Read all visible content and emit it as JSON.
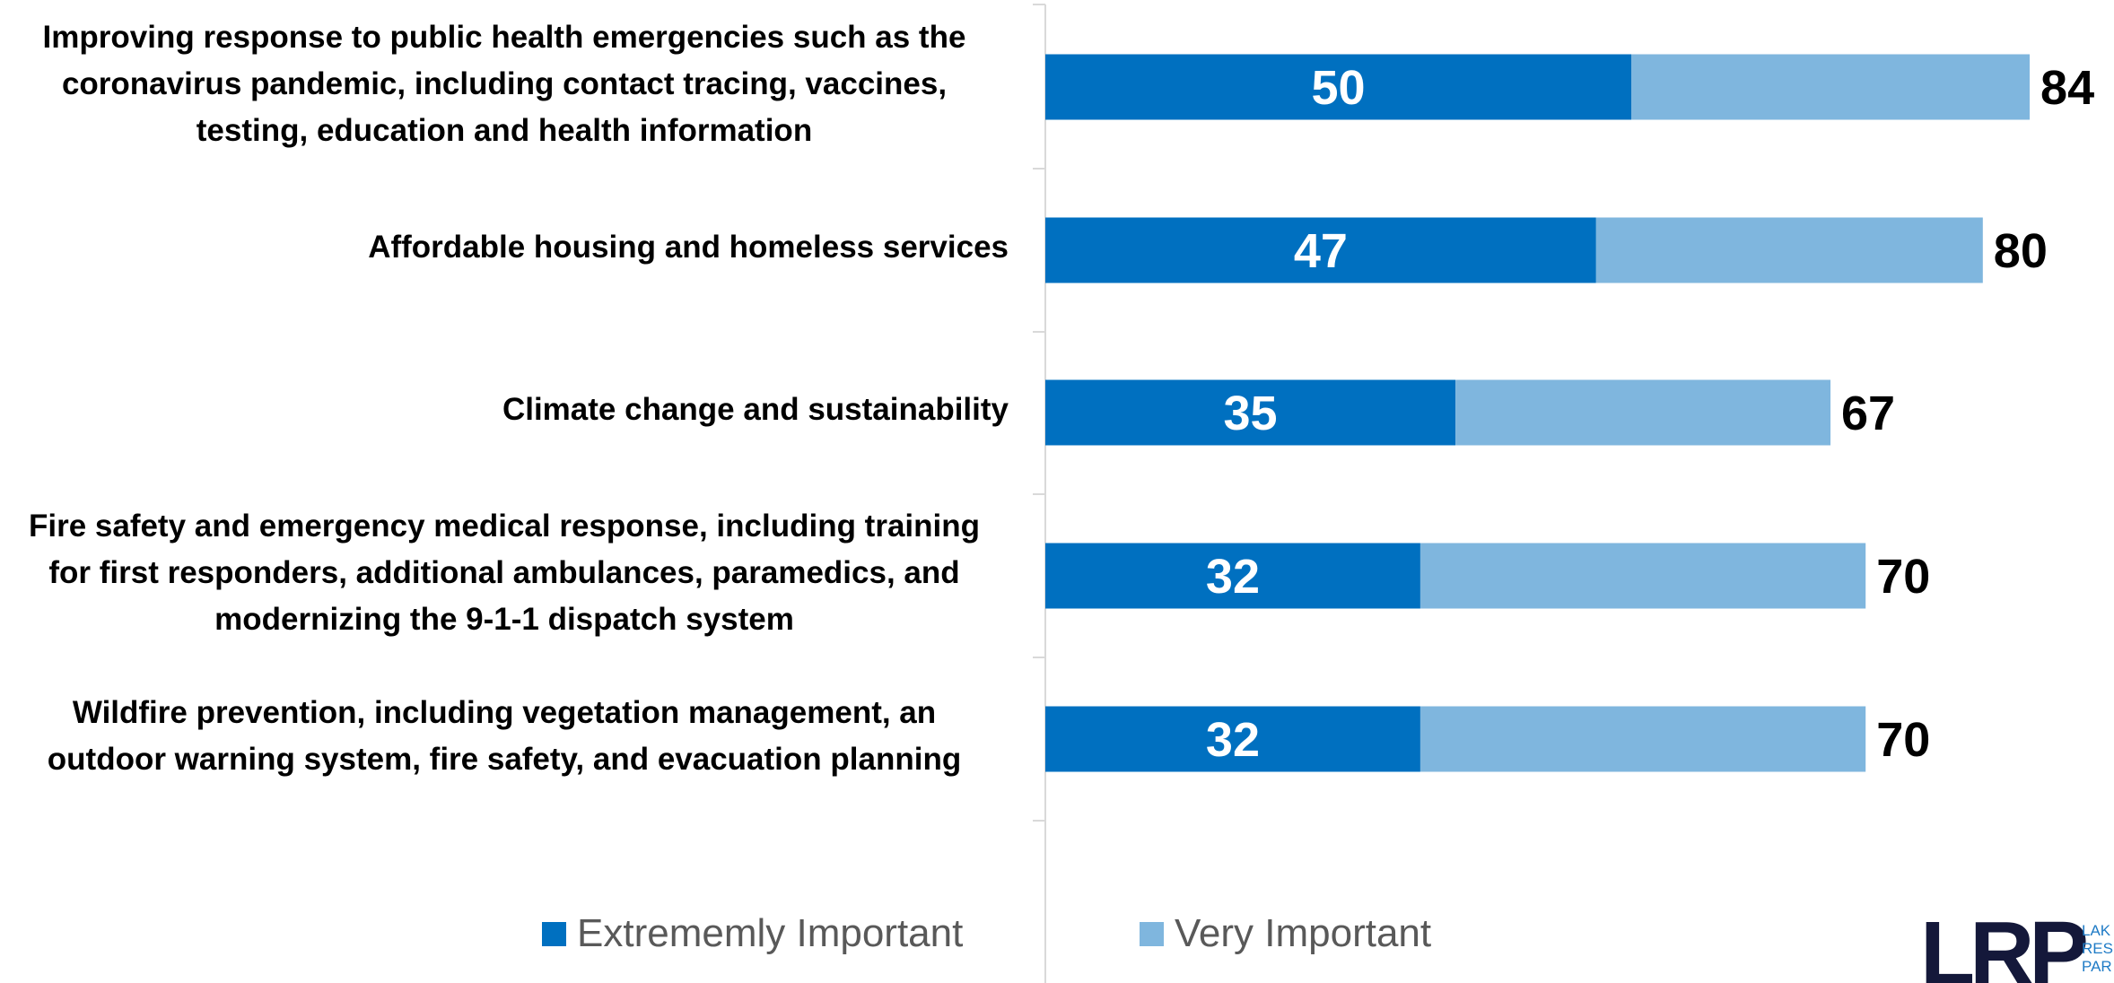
{
  "colors": {
    "extremely": "#0070c0",
    "very": "#7fb6de",
    "axis": "#d9d9d9",
    "in_label": "#ffffff",
    "total_label": "#000000"
  },
  "legend": {
    "extremely_label": "Extrememly Important",
    "very_label": "Very Important"
  },
  "logo": {
    "mark": "LRP",
    "text_lines": [
      "LAK",
      "RES",
      "PAR"
    ]
  },
  "chart_data": {
    "type": "bar",
    "orientation": "horizontal",
    "stacked": true,
    "categories": [
      [
        "Improving response to public health emergencies such as the",
        "coronavirus pandemic, including contact tracing, vaccines,",
        "testing, education and health information"
      ],
      [
        "Affordable housing and homeless services"
      ],
      [
        "Climate change and sustainability"
      ],
      [
        "Fire safety and emergency medical response, including training",
        "for first responders, additional ambulances, paramedics, and",
        "modernizing the 9-1-1 dispatch system"
      ],
      [
        "Wildfire prevention, including vegetation management, an",
        "outdoor warning system, fire safety, and evacuation planning"
      ]
    ],
    "series": [
      {
        "name": "Extrememly Important",
        "values": [
          50,
          47,
          35,
          32,
          32
        ]
      },
      {
        "name": "Very Important",
        "values": [
          34,
          33,
          32,
          38,
          38
        ]
      }
    ],
    "totals": [
      84,
      80,
      67,
      70,
      70
    ],
    "xlim": [
      0,
      100
    ],
    "grid": false,
    "legend_position": "bottom"
  }
}
